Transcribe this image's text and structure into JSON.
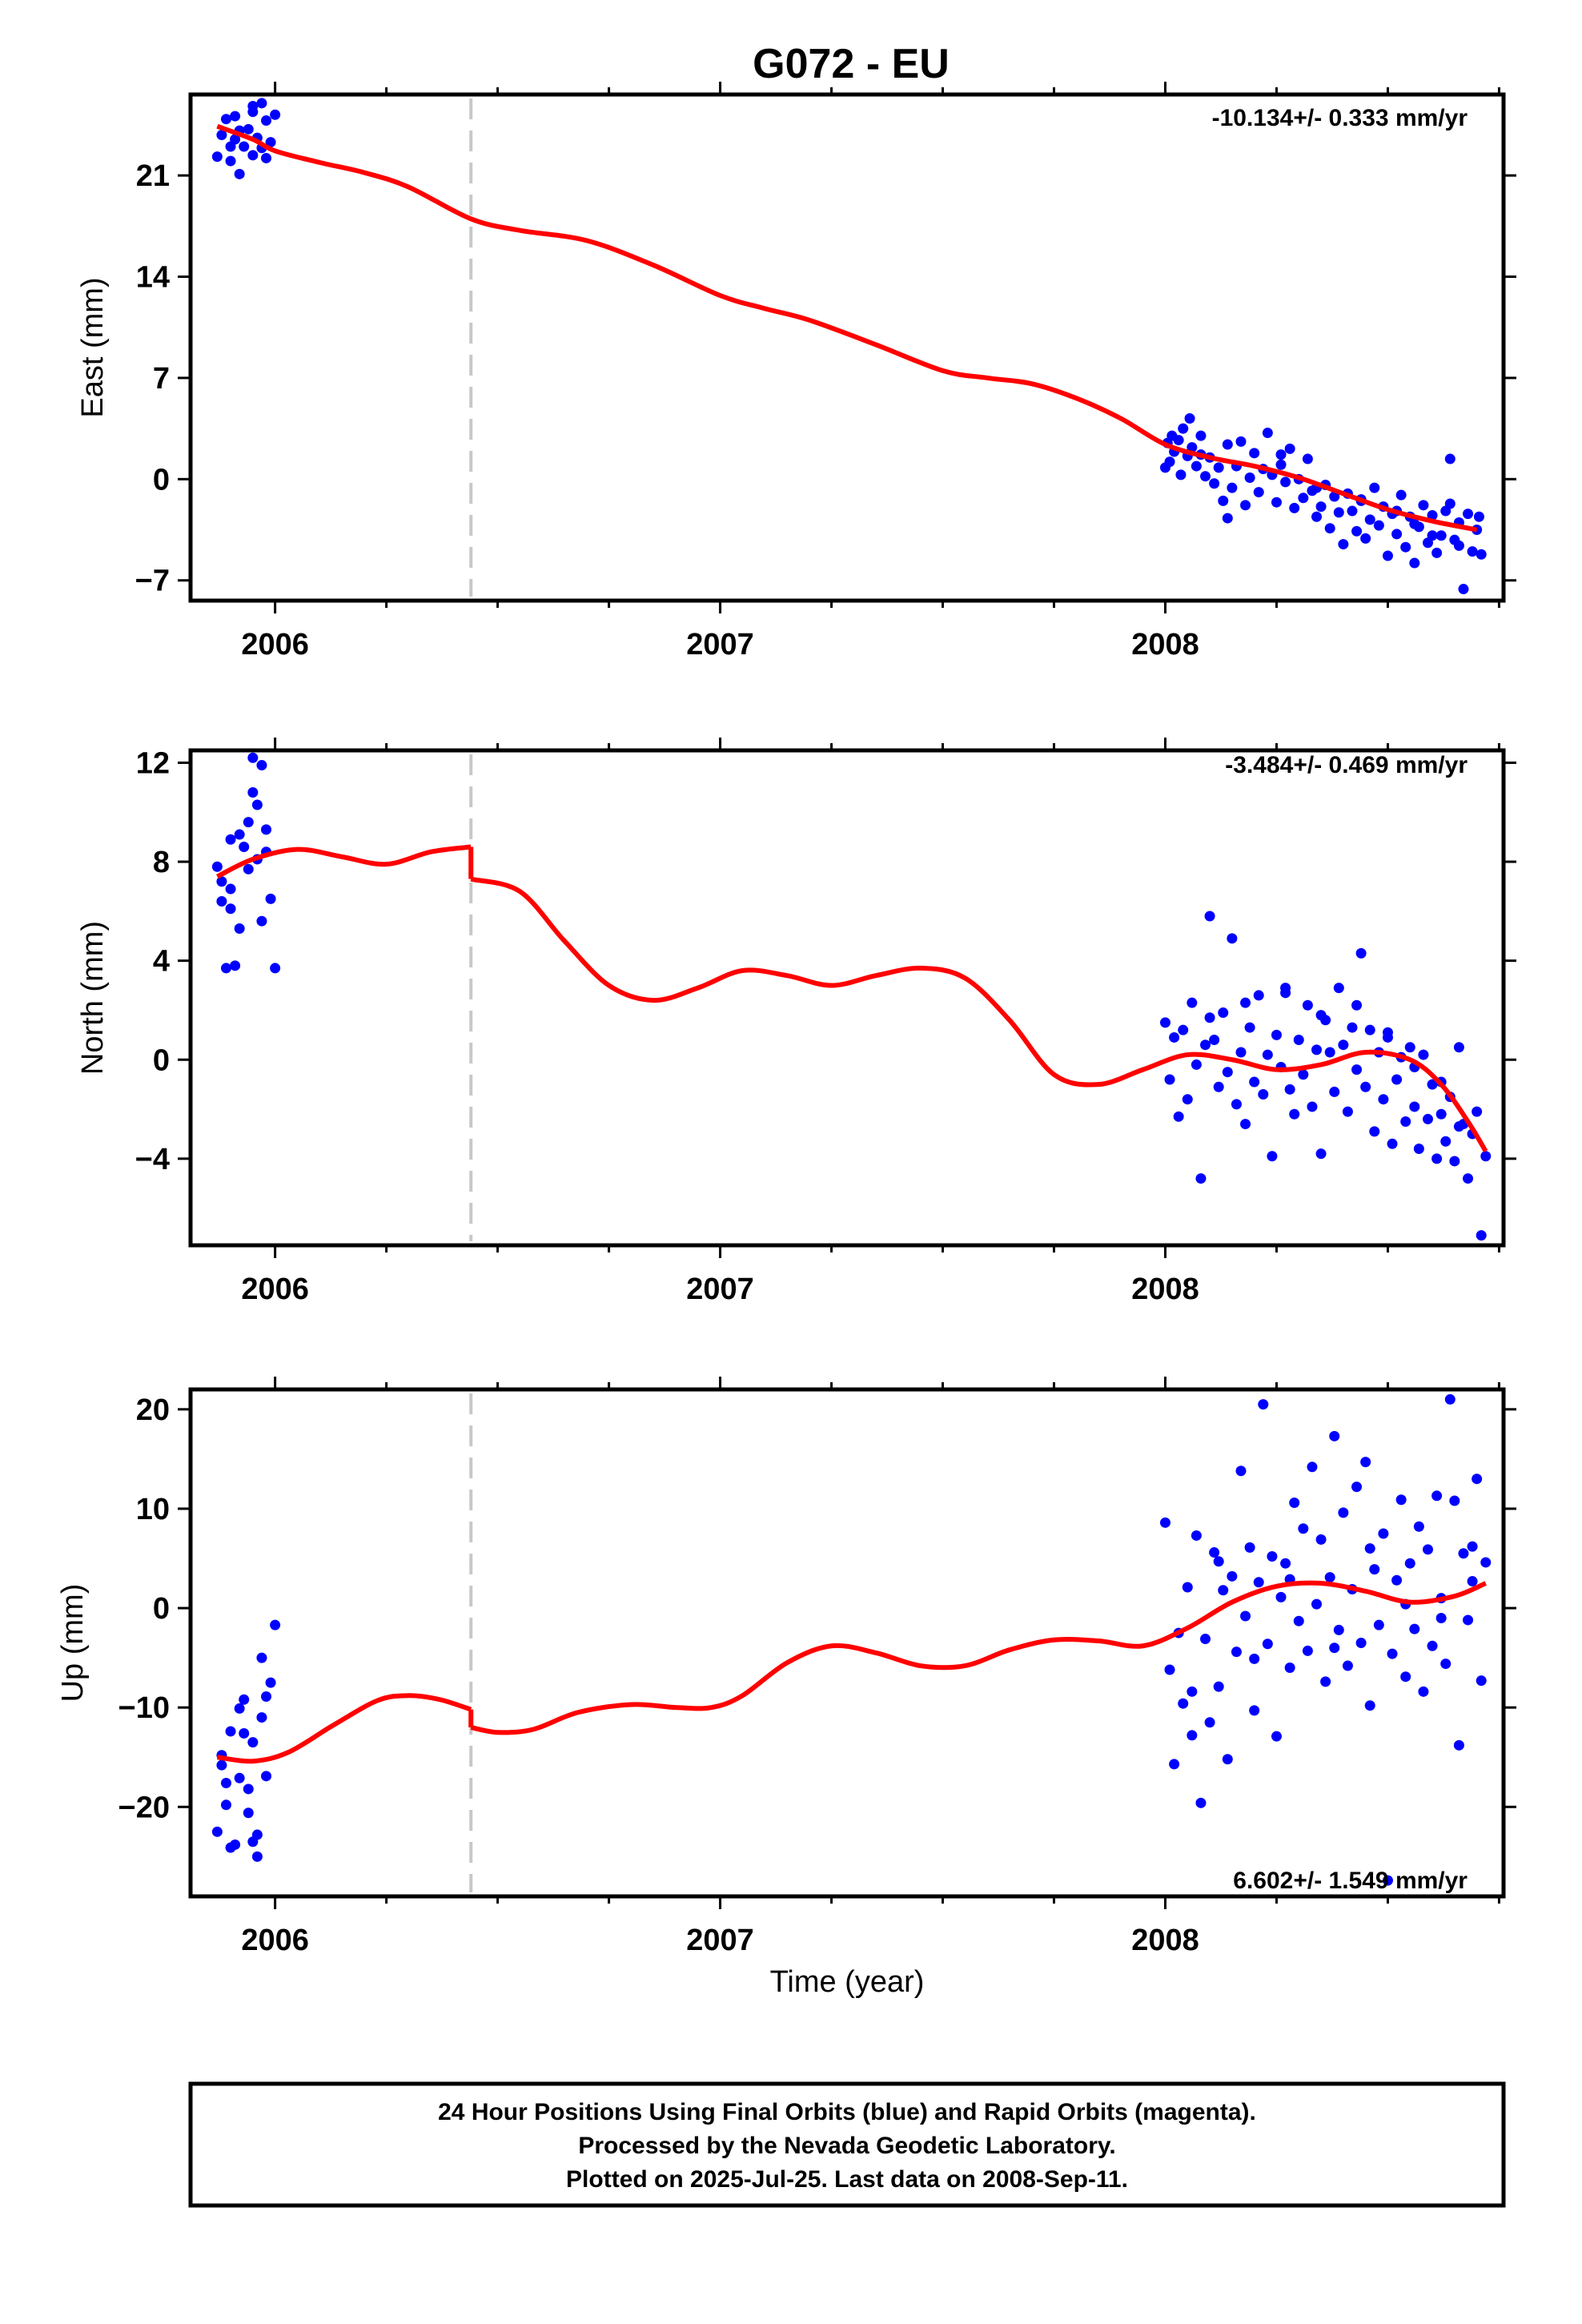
{
  "title": "G072 - EU",
  "xlabel": "Time (year)",
  "colors": {
    "final_orbits": "#0000ff",
    "model": "#ff0000",
    "offset_line": "#c8c8c8",
    "frame": "#000000"
  },
  "footer": {
    "line1": "24 Hour Positions Using Final Orbits (blue) and Rapid Orbits (magenta).",
    "line2": "Processed by the Nevada Geodetic Laboratory.",
    "line3": "Plotted on 2025-Jul-25. Last data on 2008-Sep-11."
  },
  "chart_data": [
    {
      "type": "scatter",
      "component": "east",
      "ylabel": "East (mm)",
      "rate": "-10.134+/- 0.333 mm/yr",
      "xlim": [
        2005.81,
        2008.76
      ],
      "ylim": [
        -8.4,
        26.6
      ],
      "yticks": [
        -7,
        0,
        7,
        14,
        21
      ],
      "yticklabels": [
        "−7",
        "0",
        "7",
        "14",
        "21"
      ],
      "xticks": [
        2006,
        2007,
        2008
      ],
      "xticklabels": [
        "2006",
        "2007",
        "2008"
      ],
      "offset_epoch": 2006.44,
      "model": {
        "x": [
          2005.87,
          2005.95,
          2006.0,
          2006.1,
          2006.2,
          2006.3,
          2006.44,
          2006.55,
          2006.7,
          2006.85,
          2007.0,
          2007.1,
          2007.2,
          2007.35,
          2007.5,
          2007.6,
          2007.7,
          2007.8,
          2007.9,
          2008.0,
          2008.1,
          2008.2,
          2008.3,
          2008.4,
          2008.5,
          2008.6,
          2008.7
        ],
        "y": [
          24.4,
          23.5,
          22.7,
          21.9,
          21.2,
          20.2,
          18.0,
          17.2,
          16.5,
          14.8,
          12.7,
          11.8,
          11.0,
          9.3,
          7.5,
          7.0,
          6.6,
          5.6,
          4.2,
          2.4,
          1.5,
          0.9,
          0.1,
          -1.0,
          -2.1,
          -2.9,
          -3.5
        ]
      },
      "points": {
        "x": [
          2005.87,
          2005.88,
          2005.89,
          2005.9,
          2005.91,
          2005.91,
          2005.92,
          2005.93,
          2005.94,
          2005.95,
          2005.95,
          2005.96,
          2005.97,
          2005.97,
          2005.98,
          2005.99,
          2006.0,
          2005.9,
          2005.92,
          2005.95,
          2005.98,
          2008.0,
          2008.005,
          2008.01,
          2008.015,
          2008.02,
          2008.03,
          2008.035,
          2008.04,
          2008.05,
          2008.055,
          2008.06,
          2008.07,
          2008.08,
          2008.09,
          2008.1,
          2008.11,
          2008.12,
          2008.13,
          2008.14,
          2008.15,
          2008.16,
          2008.17,
          2008.18,
          2008.19,
          2008.2,
          2008.21,
          2008.22,
          2008.23,
          2008.24,
          2008.25,
          2008.26,
          2008.27,
          2008.28,
          2008.29,
          2008.3,
          2008.31,
          2008.32,
          2008.33,
          2008.34,
          2008.35,
          2008.36,
          2008.37,
          2008.38,
          2008.39,
          2008.4,
          2008.41,
          2008.42,
          2008.43,
          2008.44,
          2008.45,
          2008.46,
          2008.47,
          2008.48,
          2008.49,
          2008.5,
          2008.51,
          2008.52,
          2008.53,
          2008.54,
          2008.55,
          2008.56,
          2008.57,
          2008.58,
          2008.59,
          2008.6,
          2008.61,
          2008.62,
          2008.63,
          2008.64,
          2008.65,
          2008.66,
          2008.67,
          2008.68,
          2008.69,
          2008.7,
          2008.705,
          2008.71,
          2008.08,
          2008.14,
          2008.26,
          2008.34,
          2008.44,
          2008.52,
          2008.56,
          2008.6,
          2008.64,
          2008.66
        ],
        "y": [
          22.3,
          23.8,
          24.9,
          22.0,
          23.5,
          25.1,
          21.1,
          23.0,
          24.2,
          22.4,
          25.8,
          23.6,
          26.0,
          22.9,
          24.8,
          23.3,
          25.2,
          23.0,
          24.1,
          25.4,
          22.2,
          0.8,
          2.5,
          1.2,
          3.0,
          1.9,
          2.7,
          0.3,
          3.5,
          1.6,
          4.2,
          2.2,
          0.9,
          1.7,
          0.2,
          1.5,
          -0.3,
          0.8,
          -1.5,
          -2.7,
          -0.6,
          0.9,
          2.6,
          -1.8,
          0.1,
          1.8,
          -0.9,
          0.7,
          3.2,
          0.3,
          -1.6,
          1.0,
          -0.2,
          2.1,
          -2.0,
          0.0,
          -1.3,
          1.4,
          -0.8,
          -2.6,
          -1.9,
          -0.4,
          -3.4,
          -1.2,
          -2.3,
          -4.5,
          -1.0,
          -2.2,
          -3.6,
          -1.5,
          -4.1,
          -2.8,
          -0.6,
          -3.2,
          -1.9,
          -5.3,
          -2.4,
          -3.8,
          -1.1,
          -4.7,
          -2.6,
          -5.8,
          -3.3,
          -1.8,
          -4.4,
          -2.5,
          -5.1,
          -3.9,
          -2.2,
          1.4,
          -4.2,
          -3.0,
          -7.6,
          -2.4,
          -5.0,
          -3.5,
          -2.6,
          -5.2,
          3.0,
          2.4,
          1.7,
          -0.6,
          -1.4,
          -2.2,
          -3.1,
          -3.9,
          -1.7,
          -4.6
        ]
      }
    },
    {
      "type": "scatter",
      "component": "north",
      "ylabel": "North (mm)",
      "rate": "-3.484+/- 0.469 mm/yr",
      "xlim": [
        2005.81,
        2008.76
      ],
      "ylim": [
        -7.5,
        12.5
      ],
      "yticks": [
        -4,
        0,
        4,
        8,
        12
      ],
      "yticklabels": [
        "−4",
        "0",
        "4",
        "8",
        "12"
      ],
      "xticks": [
        2006,
        2007,
        2008
      ],
      "xticklabels": [
        "2006",
        "2007",
        "2008"
      ],
      "offset_epoch": 2006.44,
      "model": {
        "x": [
          2005.87,
          2005.95,
          2006.05,
          2006.15,
          2006.25,
          2006.35,
          2006.44,
          2006.44,
          2006.55,
          2006.65,
          2006.75,
          2006.85,
          2006.95,
          2007.05,
          2007.15,
          2007.25,
          2007.35,
          2007.45,
          2007.55,
          2007.65,
          2007.75,
          2007.85,
          2007.95,
          2008.05,
          2008.15,
          2008.25,
          2008.35,
          2008.45,
          2008.55,
          2008.62,
          2008.68,
          2008.72
        ],
        "y": [
          7.4,
          8.1,
          8.5,
          8.2,
          7.9,
          8.4,
          8.6,
          7.3,
          6.8,
          4.8,
          3.0,
          2.4,
          2.9,
          3.6,
          3.4,
          3.0,
          3.4,
          3.7,
          3.3,
          1.6,
          -0.6,
          -1.0,
          -0.4,
          0.2,
          0.0,
          -0.4,
          -0.2,
          0.3,
          0.0,
          -1.0,
          -2.5,
          -3.7
        ]
      },
      "points": {
        "x": [
          2005.87,
          2005.88,
          2005.89,
          2005.9,
          2005.91,
          2005.92,
          2005.93,
          2005.94,
          2005.95,
          2005.96,
          2005.97,
          2005.98,
          2005.99,
          2006.0,
          2005.88,
          2005.9,
          2005.92,
          2005.94,
          2005.96,
          2005.98,
          2005.9,
          2005.95,
          2005.97,
          2008.0,
          2008.01,
          2008.02,
          2008.03,
          2008.04,
          2008.05,
          2008.06,
          2008.07,
          2008.08,
          2008.09,
          2008.1,
          2008.11,
          2008.12,
          2008.13,
          2008.14,
          2008.15,
          2008.16,
          2008.17,
          2008.18,
          2008.19,
          2008.2,
          2008.21,
          2008.22,
          2008.23,
          2008.24,
          2008.25,
          2008.26,
          2008.27,
          2008.28,
          2008.29,
          2008.3,
          2008.31,
          2008.32,
          2008.33,
          2008.34,
          2008.35,
          2008.36,
          2008.37,
          2008.38,
          2008.39,
          2008.4,
          2008.41,
          2008.42,
          2008.43,
          2008.44,
          2008.45,
          2008.46,
          2008.47,
          2008.48,
          2008.49,
          2008.5,
          2008.51,
          2008.52,
          2008.53,
          2008.54,
          2008.55,
          2008.56,
          2008.57,
          2008.58,
          2008.59,
          2008.6,
          2008.61,
          2008.62,
          2008.63,
          2008.64,
          2008.65,
          2008.66,
          2008.67,
          2008.68,
          2008.69,
          2008.7,
          2008.71,
          2008.72,
          2008.1,
          2008.18,
          2008.27,
          2008.35,
          2008.43,
          2008.5,
          2008.56,
          2008.62,
          2008.66
        ],
        "y": [
          7.8,
          6.4,
          3.7,
          6.9,
          3.8,
          5.3,
          8.6,
          9.6,
          10.8,
          8.1,
          11.9,
          9.3,
          6.5,
          3.7,
          7.2,
          6.1,
          9.1,
          7.7,
          10.3,
          8.4,
          8.9,
          12.2,
          5.6,
          1.5,
          -0.8,
          0.9,
          -2.3,
          1.2,
          -1.6,
          2.3,
          -0.2,
          -4.8,
          0.6,
          5.8,
          0.8,
          -1.1,
          1.9,
          -0.5,
          4.9,
          -1.8,
          0.3,
          -2.6,
          1.3,
          -0.9,
          2.6,
          -1.4,
          0.2,
          -3.9,
          1.0,
          -0.3,
          2.9,
          -1.2,
          -2.2,
          0.8,
          -0.6,
          2.2,
          -1.9,
          0.4,
          -3.8,
          1.6,
          0.3,
          -1.3,
          2.9,
          0.6,
          -2.1,
          1.3,
          -0.4,
          4.3,
          -1.1,
          1.2,
          -2.9,
          0.3,
          -1.6,
          0.9,
          -3.4,
          -0.8,
          0.1,
          -2.5,
          0.5,
          -1.9,
          -3.6,
          0.2,
          -2.4,
          -1.0,
          -4.0,
          -2.2,
          -3.3,
          -1.5,
          -4.1,
          0.5,
          -2.6,
          -4.8,
          -3.0,
          -2.1,
          -7.1,
          -3.9,
          1.7,
          2.3,
          2.7,
          1.8,
          2.2,
          1.1,
          -0.3,
          -0.9,
          -2.7
        ]
      }
    },
    {
      "type": "scatter",
      "component": "up",
      "ylabel": "Up (mm)",
      "rate": "6.602+/- 1.549 mm/yr",
      "xlim": [
        2005.81,
        2008.76
      ],
      "ylim": [
        -29,
        22
      ],
      "yticks": [
        -20,
        -10,
        0,
        10,
        20
      ],
      "yticklabels": [
        "−20",
        "−10",
        "0",
        "10",
        "20"
      ],
      "xticks": [
        2006,
        2007,
        2008
      ],
      "xticklabels": [
        "2006",
        "2007",
        "2008"
      ],
      "offset_epoch": 2006.44,
      "model": {
        "x": [
          2005.87,
          2005.95,
          2006.03,
          2006.13,
          2006.23,
          2006.3,
          2006.37,
          2006.44,
          2006.44,
          2006.5,
          2006.58,
          2006.68,
          2006.8,
          2006.9,
          2006.98,
          2007.05,
          2007.15,
          2007.25,
          2007.35,
          2007.45,
          2007.55,
          2007.65,
          2007.75,
          2007.85,
          2007.95,
          2008.05,
          2008.15,
          2008.25,
          2008.35,
          2008.45,
          2008.55,
          2008.65,
          2008.72
        ],
        "y": [
          -15.0,
          -15.4,
          -14.5,
          -11.8,
          -9.3,
          -8.8,
          -9.2,
          -10.2,
          -12.0,
          -12.5,
          -12.2,
          -10.5,
          -9.7,
          -10.0,
          -10.0,
          -8.8,
          -5.5,
          -3.8,
          -4.5,
          -5.8,
          -5.8,
          -4.2,
          -3.2,
          -3.3,
          -3.8,
          -2.0,
          0.6,
          2.2,
          2.5,
          1.7,
          0.6,
          1.2,
          2.5
        ]
      },
      "points": {
        "x": [
          2005.87,
          2005.88,
          2005.89,
          2005.9,
          2005.91,
          2005.92,
          2005.93,
          2005.94,
          2005.95,
          2005.96,
          2005.97,
          2005.98,
          2005.99,
          2006.0,
          2005.88,
          2005.9,
          2005.92,
          2005.94,
          2005.96,
          2005.98,
          2005.89,
          2005.93,
          2005.95,
          2005.97,
          2008.0,
          2008.01,
          2008.02,
          2008.03,
          2008.04,
          2008.05,
          2008.06,
          2008.07,
          2008.08,
          2008.09,
          2008.1,
          2008.11,
          2008.12,
          2008.13,
          2008.14,
          2008.15,
          2008.16,
          2008.17,
          2008.18,
          2008.19,
          2008.2,
          2008.21,
          2008.22,
          2008.23,
          2008.24,
          2008.25,
          2008.26,
          2008.27,
          2008.28,
          2008.29,
          2008.3,
          2008.31,
          2008.32,
          2008.33,
          2008.34,
          2008.35,
          2008.36,
          2008.37,
          2008.38,
          2008.39,
          2008.4,
          2008.41,
          2008.42,
          2008.43,
          2008.44,
          2008.45,
          2008.46,
          2008.47,
          2008.48,
          2008.49,
          2008.5,
          2008.51,
          2008.52,
          2008.53,
          2008.54,
          2008.55,
          2008.56,
          2008.57,
          2008.58,
          2008.59,
          2008.6,
          2008.61,
          2008.62,
          2008.63,
          2008.64,
          2008.65,
          2008.66,
          2008.67,
          2008.68,
          2008.69,
          2008.7,
          2008.71,
          2008.72,
          2008.06,
          2008.12,
          2008.2,
          2008.28,
          2008.38,
          2008.46,
          2008.54,
          2008.62,
          2008.69
        ],
        "y": [
          -22.5,
          -15.8,
          -19.8,
          -12.4,
          -23.8,
          -17.1,
          -9.2,
          -20.6,
          -13.5,
          -25.0,
          -11.0,
          -16.9,
          -7.5,
          -1.7,
          -14.8,
          -24.1,
          -10.1,
          -18.2,
          -22.8,
          -8.9,
          -17.6,
          -12.6,
          -23.5,
          -5.0,
          8.6,
          -6.2,
          -15.7,
          -2.5,
          -9.6,
          2.1,
          -12.8,
          7.3,
          -19.6,
          -3.1,
          -11.5,
          5.6,
          -7.9,
          1.8,
          -15.2,
          3.2,
          -4.4,
          13.8,
          -0.8,
          6.1,
          -10.3,
          2.6,
          20.5,
          -3.6,
          5.2,
          -12.9,
          1.1,
          4.5,
          -6.0,
          10.6,
          -1.3,
          8.0,
          -4.3,
          14.2,
          0.4,
          6.9,
          -7.4,
          3.1,
          17.3,
          -2.2,
          9.6,
          -5.8,
          1.9,
          12.2,
          -3.5,
          14.7,
          -9.8,
          3.9,
          -1.7,
          7.5,
          -27.4,
          -4.6,
          2.8,
          10.9,
          -6.9,
          4.5,
          -2.1,
          8.2,
          -8.4,
          5.9,
          -3.8,
          11.3,
          1.0,
          -5.6,
          21.0,
          10.8,
          -13.8,
          5.5,
          -1.2,
          6.2,
          13.0,
          -7.3,
          4.6,
          -8.4,
          4.7,
          -5.1,
          2.9,
          -4.0,
          6.0,
          0.4,
          -1.0,
          2.7
        ]
      }
    }
  ]
}
